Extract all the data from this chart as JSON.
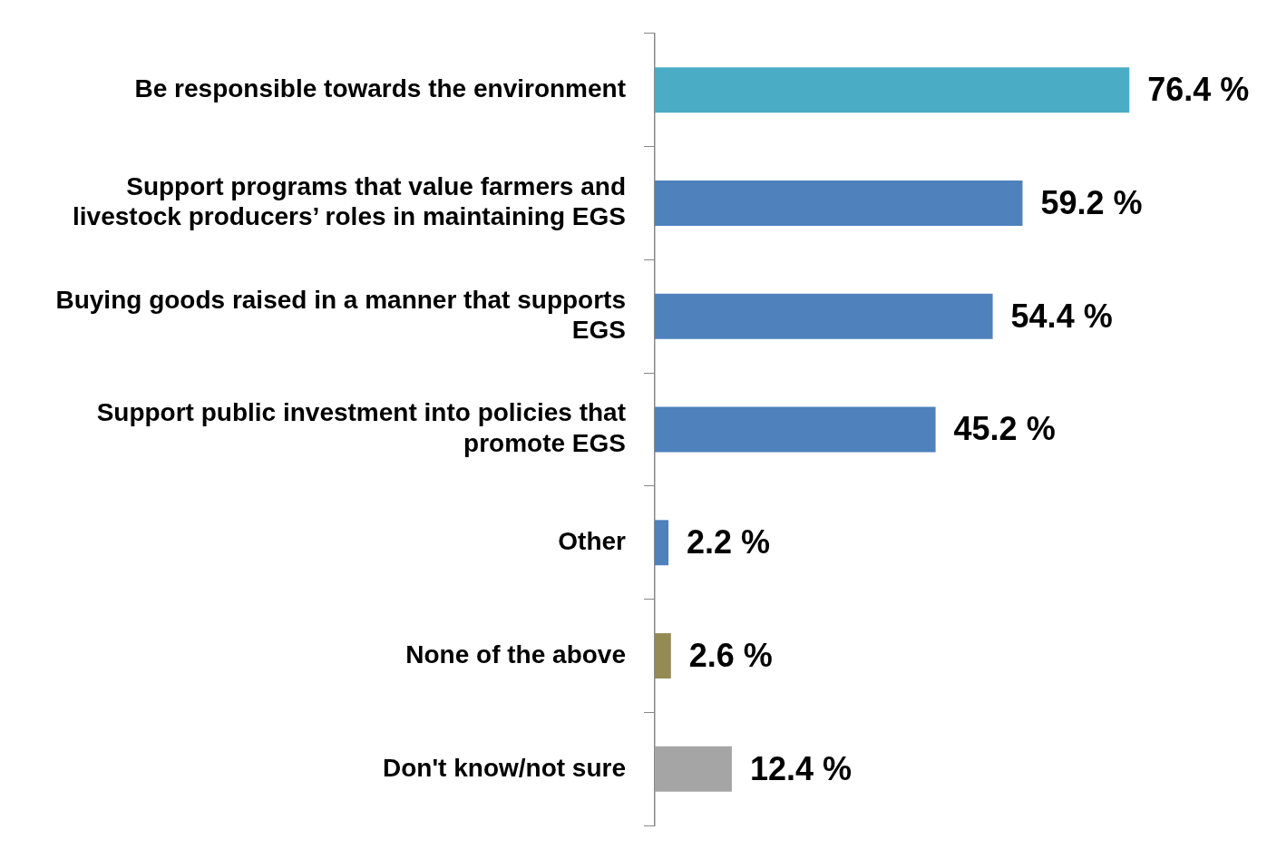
{
  "chart_data": {
    "type": "bar",
    "orientation": "horizontal",
    "categories": [
      "Be responsible towards the environment",
      "Support programs that value farmers and livestock producers’ roles in maintaining EGS",
      "Buying goods raised in a manner that supports EGS",
      "Support public investment into policies that promote EGS",
      "Other",
      "None of the above",
      "Don't know/not sure"
    ],
    "values": [
      76.4,
      59.2,
      54.4,
      45.2,
      2.2,
      2.6,
      12.4
    ],
    "colors": [
      "#4bacc6",
      "#4f81bd",
      "#4f81bd",
      "#4f81bd",
      "#4f81bd",
      "#948a54",
      "#a5a5a5"
    ],
    "value_labels": [
      "76.4 %",
      "59.2 %",
      "54.4 %",
      "45.2 %",
      "2.2 %",
      "2.6 %",
      "12.4 %"
    ]
  }
}
